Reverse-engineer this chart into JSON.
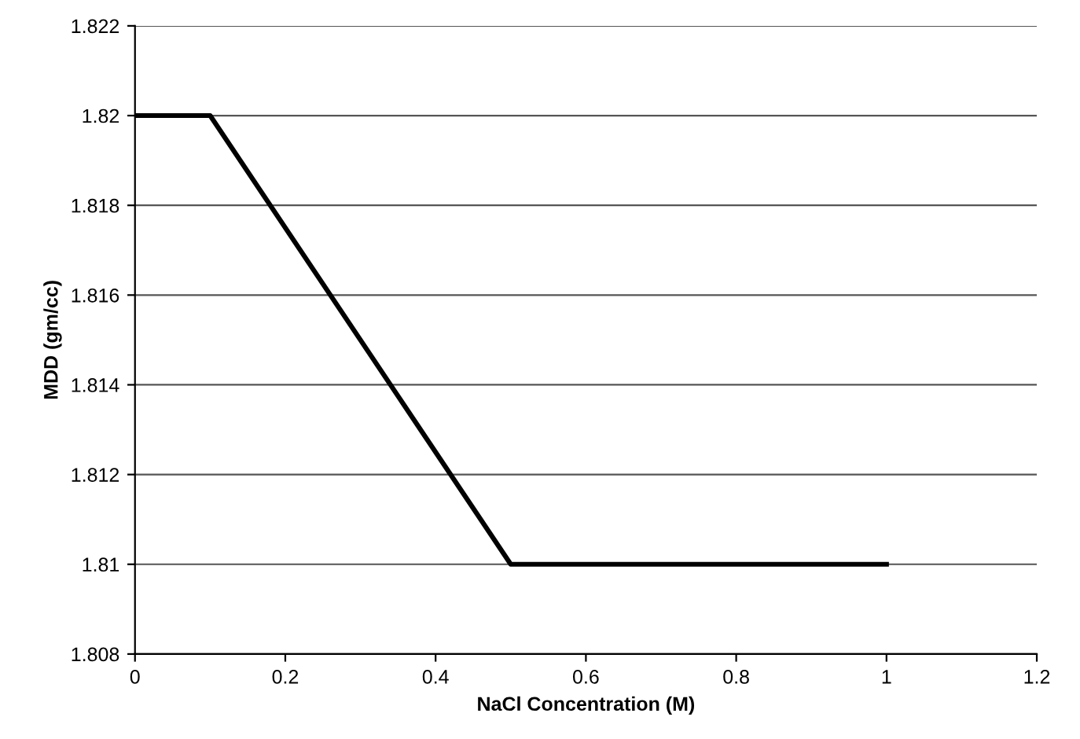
{
  "chart_data": {
    "type": "line",
    "xlabel": "NaCl Concentration (M)",
    "ylabel": "MDD (gm/cc)",
    "x": [
      0,
      0.1,
      0.5,
      1
    ],
    "series": [
      {
        "color": "#000000",
        "values": [
          1.82,
          1.82,
          1.81,
          1.81
        ]
      }
    ],
    "xlim": [
      0,
      1.2
    ],
    "xticks": [
      0,
      0.2,
      0.4,
      0.6,
      0.8,
      1,
      1.2
    ],
    "ylim": [
      1.808,
      1.822
    ],
    "yticks": [
      1.808,
      1.81,
      1.812,
      1.814,
      1.816,
      1.818,
      1.82,
      1.822
    ],
    "grid": "y",
    "marker": "none",
    "line_style": "solid",
    "legend": false
  }
}
